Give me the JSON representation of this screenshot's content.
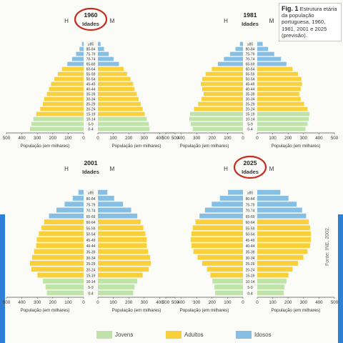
{
  "caption": {
    "fig_label": "Fig. 1",
    "text": "Estrutura etária da população portuguesa, 1960, 1981, 2001 e 2025 (previsão)."
  },
  "colors": {
    "jovens": "#bfe3a8",
    "adultos": "#f9d039",
    "idosos": "#86bfe3",
    "circle": "#c62d1f",
    "side_bar": "#2f7fd6"
  },
  "legend": {
    "jovens": "Jovens",
    "adultos": "Adultos",
    "idosos": "Idosos"
  },
  "source": "Fonte: INE, 2002.",
  "chart_data": [
    {
      "type": "bar",
      "orientation": "horizontal-population-pyramid",
      "year": "1960",
      "circled": true,
      "axis_title": "Idades",
      "left_sex": "H",
      "right_sex": "M",
      "xlabel": "População (em milhares)",
      "xlim": [
        0,
        500
      ],
      "x_ticks": [
        "500",
        "400",
        "300",
        "200",
        "100",
        "0",
        "0",
        "100",
        "200",
        "300",
        "400",
        "500"
      ],
      "age_groups": [
        "0-4",
        "5-9",
        "10-14",
        "15-19",
        "20-24",
        "25-29",
        "30-34",
        "35-39",
        "40-44",
        "45-49",
        "50-54",
        "55-59",
        "60-64",
        "65-69",
        "70-74",
        "75-79",
        "80-84",
        "≥85"
      ],
      "age_labels": [
        "0-4",
        "5-9",
        "10-14",
        "15-19",
        "20-24",
        "25-29",
        "30-34",
        "35-39",
        "40-44",
        "45-49",
        "50-54",
        "55-59",
        "60-64",
        "65-69",
        "70-74",
        "75-79",
        "80-84",
        "≥85"
      ],
      "groups": [
        "jovens",
        "jovens",
        "jovens",
        "adultos",
        "adultos",
        "adultos",
        "adultos",
        "adultos",
        "adultos",
        "adultos",
        "adultos",
        "adultos",
        "adultos",
        "idosos",
        "idosos",
        "idosos",
        "idosos",
        "idosos"
      ],
      "series": [
        {
          "name": "H",
          "values": [
            395,
            385,
            370,
            350,
            320,
            300,
            290,
            270,
            255,
            240,
            215,
            190,
            160,
            120,
            85,
            55,
            30,
            12
          ]
        },
        {
          "name": "M",
          "values": [
            380,
            375,
            360,
            345,
            330,
            315,
            300,
            285,
            270,
            260,
            240,
            215,
            190,
            155,
            115,
            80,
            45,
            20
          ]
        }
      ]
    },
    {
      "type": "bar",
      "orientation": "horizontal-population-pyramid",
      "year": "1981",
      "circled": false,
      "axis_title": "Idades",
      "left_sex": "H",
      "right_sex": "M",
      "xlabel": "População (em milhares)",
      "xlim": [
        0,
        500
      ],
      "x_ticks": [
        "500",
        "400",
        "300",
        "200",
        "100",
        "0",
        "0",
        "100",
        "200",
        "300",
        "400",
        "500"
      ],
      "age_groups": [
        "0-4",
        "5-9",
        "10-14",
        "15-19",
        "20-24",
        "25-29",
        "30-34",
        "35-39",
        "40-44",
        "45-49",
        "50-54",
        "55-59",
        "60-64",
        "65-69",
        "70-74",
        "75-79",
        "80-84",
        "≥85"
      ],
      "age_labels": [
        "0-4",
        "5-9",
        "10-14",
        "15-19",
        "20-24",
        "25-29",
        "30-34",
        "35-39",
        "40-44",
        "45-49",
        "50-54",
        "55-59",
        "60-64",
        "65-69",
        "70-74",
        "75-79",
        "80-84",
        "≥85"
      ],
      "groups": [
        "jovens",
        "jovens",
        "jovens",
        "jovens",
        "adultos",
        "adultos",
        "adultos",
        "adultos",
        "adultos",
        "adultos",
        "adultos",
        "adultos",
        "adultos",
        "idosos",
        "idosos",
        "idosos",
        "idosos",
        "idosos"
      ],
      "series": [
        {
          "name": "H",
          "values": [
            370,
            385,
            395,
            390,
            360,
            330,
            305,
            290,
            300,
            310,
            300,
            275,
            230,
            185,
            140,
            95,
            55,
            22
          ]
        },
        {
          "name": "M",
          "values": [
            355,
            370,
            380,
            385,
            370,
            345,
            320,
            310,
            320,
            330,
            325,
            300,
            260,
            215,
            175,
            125,
            80,
            40
          ]
        }
      ]
    },
    {
      "type": "bar",
      "orientation": "horizontal-population-pyramid",
      "year": "2001",
      "circled": false,
      "axis_title": "Idades",
      "left_sex": "H",
      "right_sex": "M",
      "xlabel": "População (em milhares)",
      "xlim": [
        0,
        500
      ],
      "x_ticks": [
        "500",
        "400",
        "300",
        "200",
        "100",
        "0",
        "0",
        "100",
        "200",
        "300",
        "400",
        "500"
      ],
      "age_groups": [
        "0-4",
        "5-9",
        "10-14",
        "15-19",
        "20-24",
        "25-29",
        "30-34",
        "35-39",
        "40-44",
        "45-49",
        "50-54",
        "55-59",
        "60-64",
        "65-69",
        "70-74",
        "75-79",
        "80-84",
        "≥85"
      ],
      "age_labels": [
        "0-4",
        "5-9",
        "10-14",
        "15-19",
        "20-24",
        "25-29",
        "30-34",
        "35-39",
        "40-44",
        "45-49",
        "50-54",
        "55-59",
        "60-64",
        "65-69",
        "70-74",
        "75-79",
        "80-84",
        "≥85"
      ],
      "groups": [
        "jovens",
        "jovens",
        "jovens",
        "adultos",
        "adultos",
        "adultos",
        "adultos",
        "adultos",
        "adultos",
        "adultos",
        "adultos",
        "adultos",
        "adultos",
        "idosos",
        "idosos",
        "idosos",
        "idosos",
        "idosos"
      ],
      "series": [
        {
          "name": "H",
          "values": [
            270,
            280,
            300,
            340,
            385,
            395,
            380,
            365,
            350,
            345,
            330,
            310,
            290,
            255,
            200,
            140,
            80,
            38
          ]
        },
        {
          "name": "M",
          "values": [
            260,
            270,
            290,
            330,
            375,
            390,
            385,
            370,
            360,
            360,
            350,
            335,
            315,
            290,
            245,
            185,
            120,
            70
          ]
        }
      ]
    },
    {
      "type": "bar",
      "orientation": "horizontal-population-pyramid",
      "year": "2025",
      "circled": true,
      "axis_title": "Idades",
      "left_sex": "H",
      "right_sex": "M",
      "xlabel": "População (em milhares)",
      "xlim": [
        0,
        500
      ],
      "x_ticks": [
        "500",
        "400",
        "300",
        "200",
        "100",
        "0",
        "0",
        "100",
        "200",
        "300",
        "400",
        "500"
      ],
      "age_groups": [
        "0-4",
        "5-9",
        "10-14",
        "15-19",
        "20-24",
        "25-29",
        "30-34",
        "35-39",
        "40-44",
        "45-49",
        "50-54",
        "55-59",
        "60-64",
        "65-69",
        "70-74",
        "75-79",
        "80-84",
        "≥85"
      ],
      "age_labels": [
        "0-4",
        "5-9",
        "10-14",
        "15-19",
        "20-24",
        "25-29",
        "30-34",
        "35-39",
        "40-44",
        "45-49",
        "50-54",
        "55-59",
        "60-64",
        "65-69",
        "70-74",
        "75-79",
        "80-84",
        "≥85"
      ],
      "groups": [
        "jovens",
        "jovens",
        "jovens",
        "adultos",
        "adultos",
        "adultos",
        "adultos",
        "adultos",
        "adultos",
        "adultos",
        "adultos",
        "adultos",
        "adultos",
        "idosos",
        "idosos",
        "idosos",
        "idosos",
        "idosos"
      ],
      "series": [
        {
          "name": "H",
          "values": [
            205,
            210,
            225,
            240,
            265,
            300,
            335,
            365,
            380,
            385,
            380,
            370,
            350,
            320,
            280,
            230,
            170,
            110
          ]
        },
        {
          "name": "M",
          "values": [
            195,
            200,
            215,
            230,
            260,
            300,
            340,
            370,
            390,
            395,
            395,
            390,
            380,
            360,
            330,
            290,
            230,
            170
          ]
        }
      ]
    }
  ]
}
